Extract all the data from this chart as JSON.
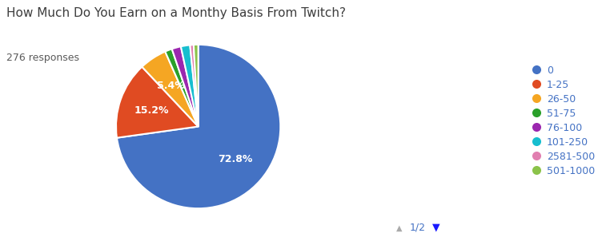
{
  "title": "How Much Do You Earn on a Monthy Basis From Twitch?",
  "subtitle": "276 responses",
  "labels": [
    "0",
    "1-25",
    "26-50",
    "51-75",
    "76-100",
    "101-250",
    "2581-500",
    "501-1000"
  ],
  "values": [
    72.8,
    15.2,
    5.4,
    1.4,
    1.8,
    1.8,
    0.7,
    0.9
  ],
  "colors": [
    "#4472C4",
    "#E04B22",
    "#F5A623",
    "#2AA02A",
    "#9B27AF",
    "#17BECF",
    "#E17FB0",
    "#8BC34A"
  ],
  "title_color": "#3d3d3d",
  "subtitle_color": "#5a5a5a",
  "legend_label_color": "#4472C4",
  "background_color": "#ffffff"
}
